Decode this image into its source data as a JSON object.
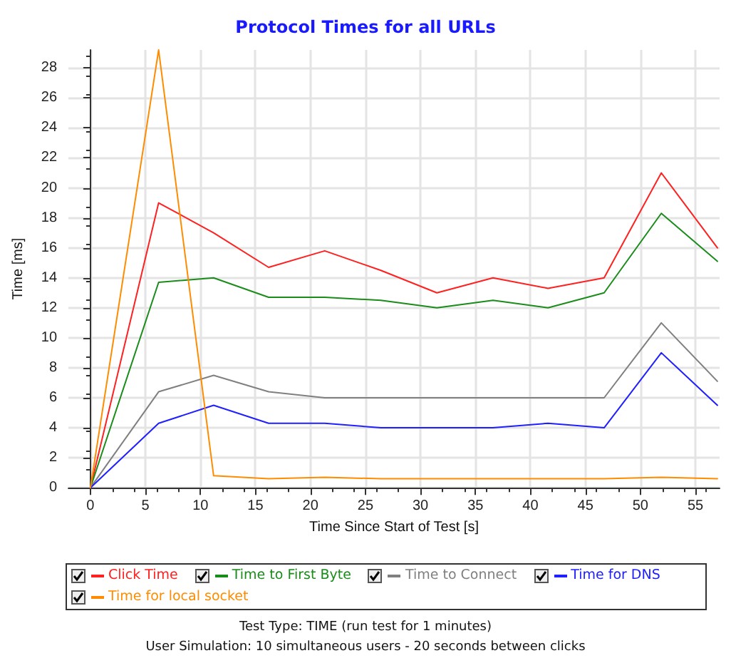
{
  "chart_data": {
    "type": "line",
    "title": "Protocol Times for all URLs",
    "xlabel": "Time Since Start of Test [s]",
    "ylabel": "Time [ms]",
    "x": [
      0,
      6.2,
      11.2,
      16.2,
      21.3,
      26.4,
      31.5,
      36.6,
      41.6,
      46.7,
      51.9,
      57
    ],
    "series": [
      {
        "name": "Click Time",
        "color": "#ff2020",
        "values": [
          0,
          19,
          17,
          14.7,
          15.8,
          14.5,
          13,
          14,
          13.3,
          14,
          21,
          16
        ]
      },
      {
        "name": "Time to First Byte",
        "color": "#1a8c1a",
        "values": [
          0,
          13.7,
          14,
          12.7,
          12.7,
          12.5,
          12,
          12.5,
          12,
          13,
          18.3,
          15.1
        ]
      },
      {
        "name": "Time to Connect",
        "color": "#808080",
        "values": [
          0,
          6.4,
          7.5,
          6.4,
          6,
          6,
          6,
          6,
          6,
          6,
          11,
          7.1
        ]
      },
      {
        "name": "Time for DNS",
        "color": "#2020ff",
        "values": [
          0,
          4.3,
          5.5,
          4.3,
          4.3,
          4,
          4,
          4,
          4.3,
          4,
          9,
          5.5
        ]
      },
      {
        "name": "Time for local socket",
        "color": "#ff8c00",
        "values": [
          0,
          29.2,
          0.8,
          0.6,
          0.7,
          0.6,
          0.6,
          0.6,
          0.6,
          0.6,
          0.7,
          0.6
        ]
      }
    ],
    "xlim": [
      -2,
      57.2
    ],
    "xticks": [
      0,
      5,
      10,
      15,
      20,
      25,
      30,
      35,
      40,
      45,
      50,
      55
    ],
    "ylim": [
      0,
      29.2
    ],
    "yticks": [
      0,
      2,
      4,
      6,
      8,
      10,
      12,
      14,
      16,
      18,
      20,
      22,
      24,
      26,
      28
    ],
    "grid": true,
    "legend": "bottom",
    "marker": "none",
    "line_style": "solid",
    "annotations": [
      "Test Type: TIME (run test for 1 minutes)",
      "User Simulation: 10 simultaneous users - 20 seconds between clicks"
    ]
  }
}
